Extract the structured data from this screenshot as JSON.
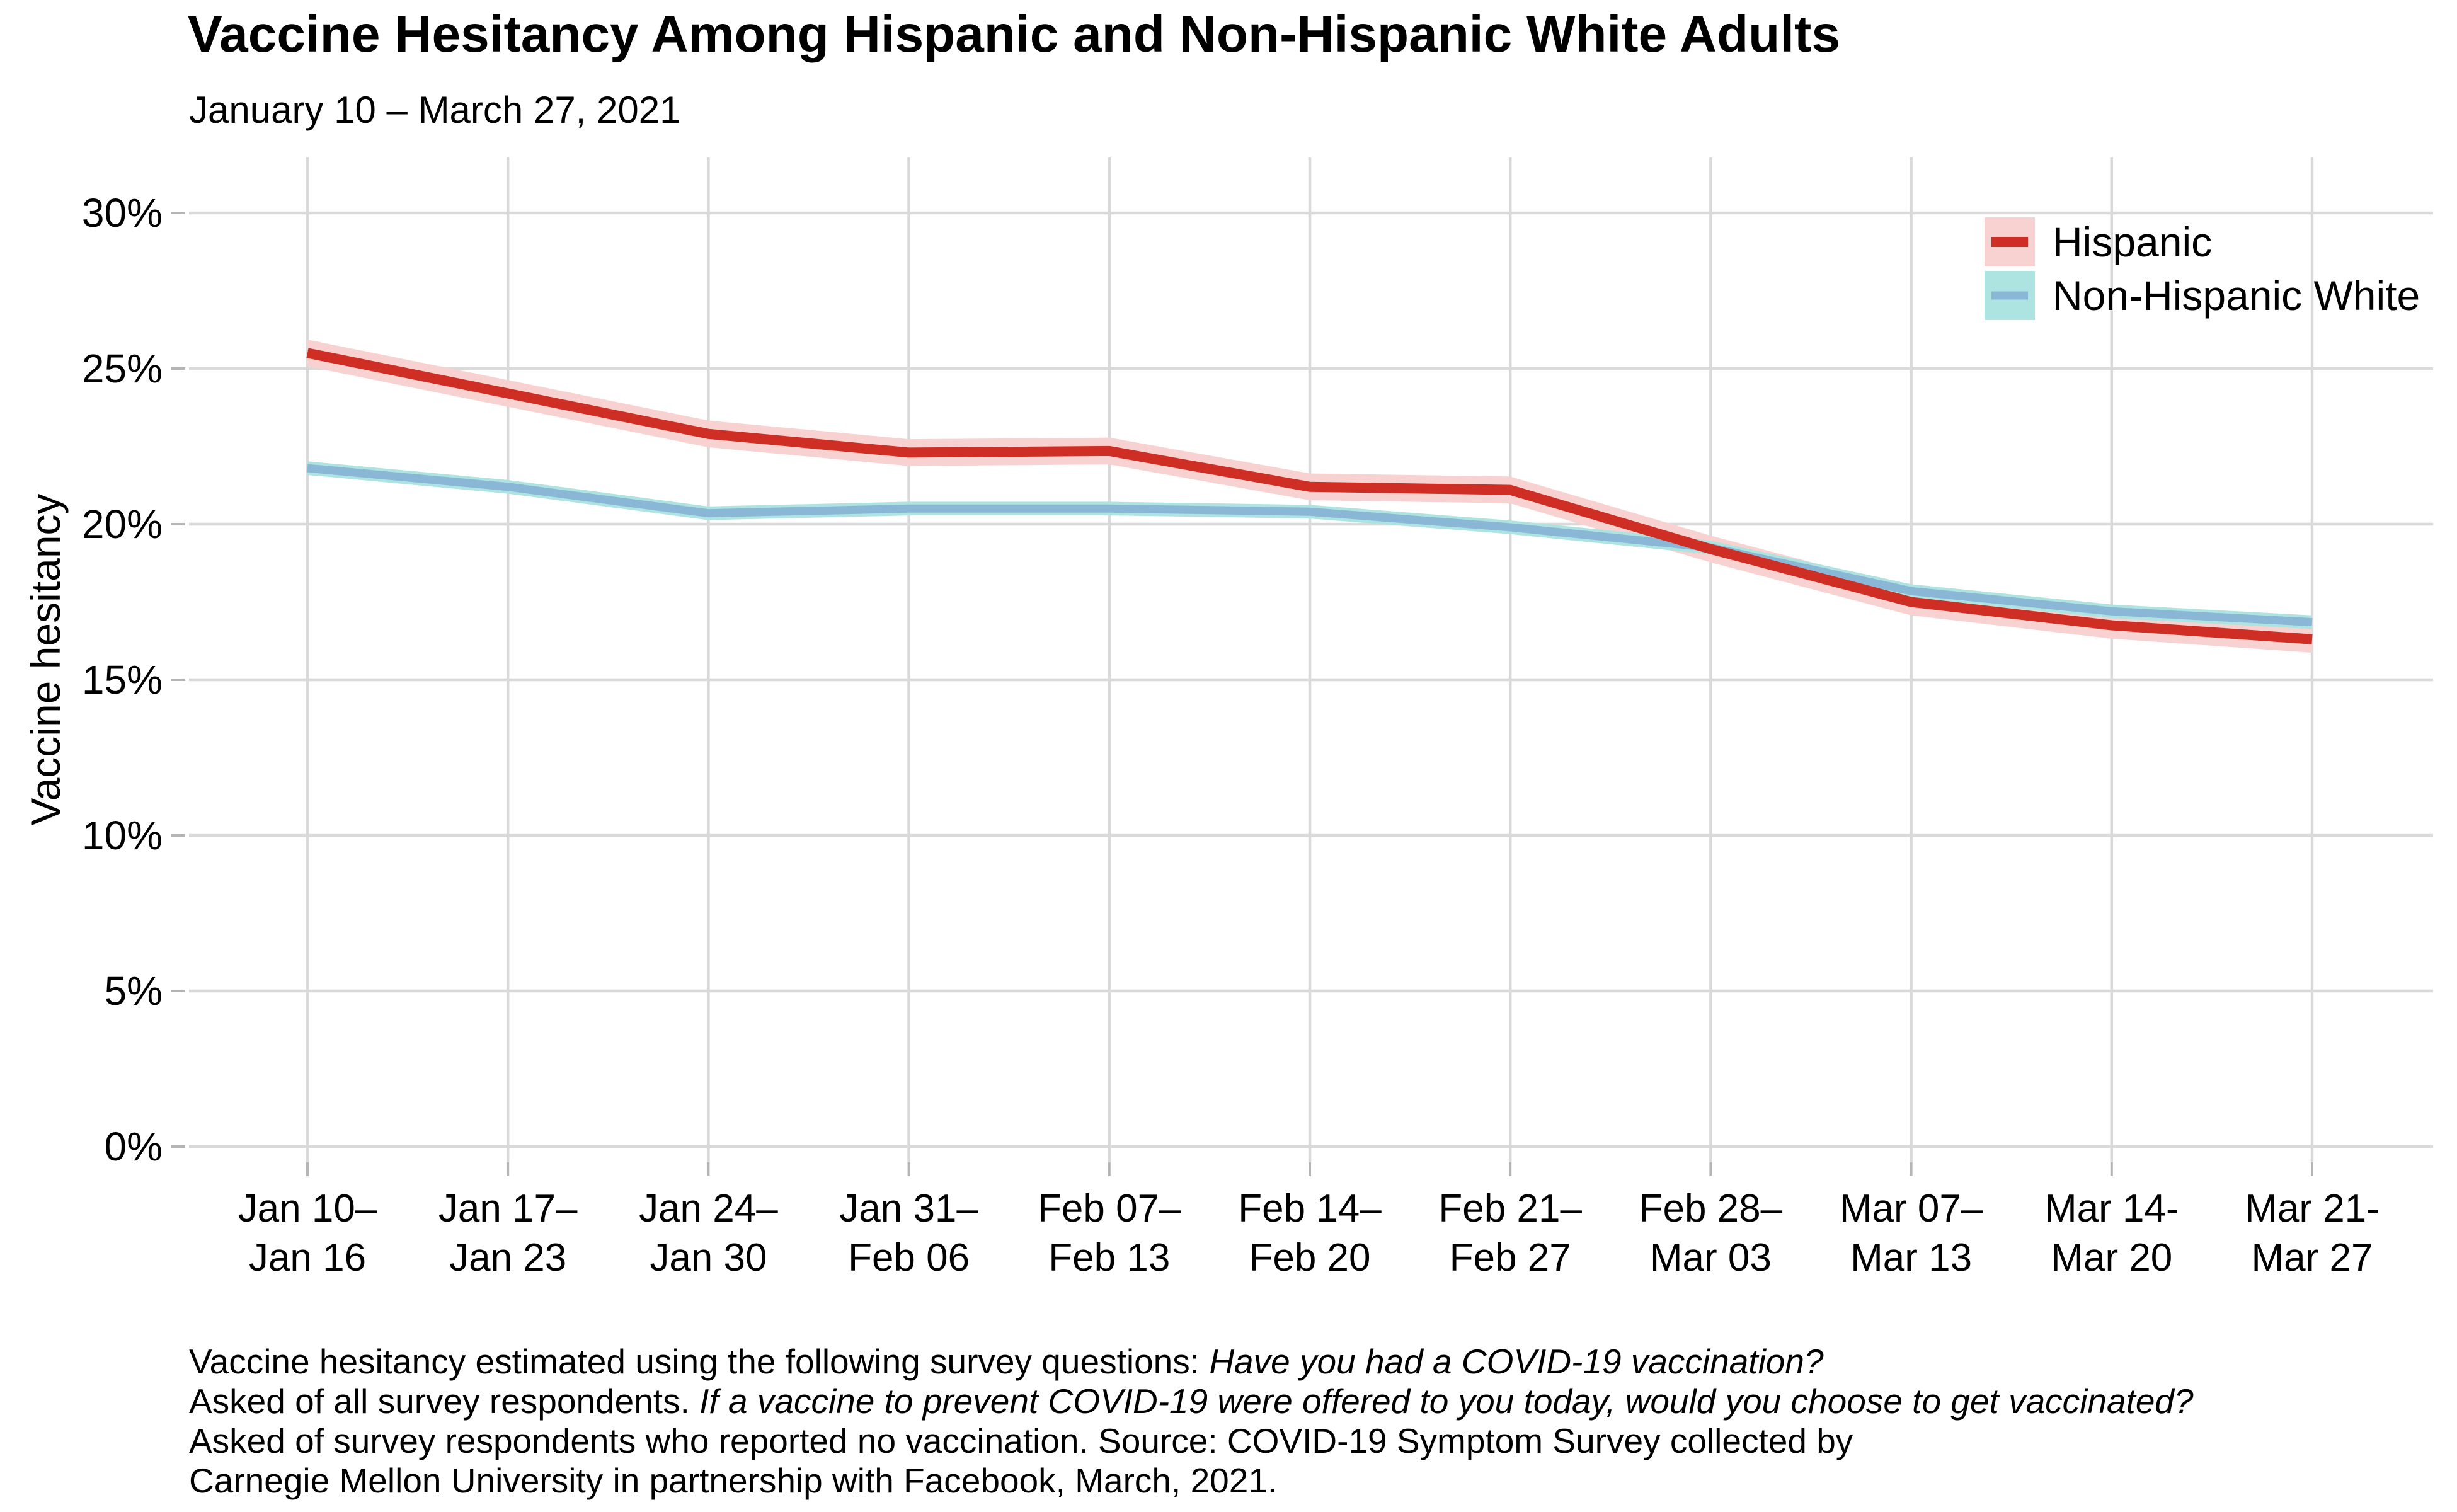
{
  "header": {
    "title": "Vaccine Hesitancy Among Hispanic and Non-Hispanic White Adults",
    "subtitle": "January 10 – March 27, 2021"
  },
  "chart_data": {
    "type": "line",
    "title": "Vaccine Hesitancy Among Hispanic and Non-Hispanic White Adults",
    "subtitle": "January 10 – March 27, 2021",
    "xlabel": "",
    "ylabel": "Vaccine hesitancy",
    "ylim": [
      0,
      30
    ],
    "grid": true,
    "legend_position": "top-right",
    "y_tick_labels": [
      "0%",
      "5%",
      "10%",
      "15%",
      "20%",
      "25%",
      "30%"
    ],
    "y_tick_values": [
      0,
      5,
      10,
      15,
      20,
      25,
      30
    ],
    "categories": [
      [
        "Jan 10–",
        "Jan 16"
      ],
      [
        "Jan 17–",
        "Jan 23"
      ],
      [
        "Jan 24–",
        "Jan 30"
      ],
      [
        "Jan 31–",
        "Feb 06"
      ],
      [
        "Feb 07–",
        "Feb 13"
      ],
      [
        "Feb 14–",
        "Feb 20"
      ],
      [
        "Feb 21–",
        "Feb 27"
      ],
      [
        "Feb 28–",
        "Mar 03"
      ],
      [
        "Mar 07–",
        "Mar 13"
      ],
      [
        "Mar 14-",
        "Mar 20"
      ],
      [
        "Mar 21-",
        "Mar 27"
      ]
    ],
    "series": [
      {
        "name": "Hispanic",
        "values": [
          25.5,
          24.2,
          22.9,
          22.3,
          22.35,
          21.2,
          21.1,
          19.2,
          17.5,
          16.75,
          16.3
        ],
        "ci_halfwidth_pct": 0.43,
        "line_color": "#ce2e23",
        "band_color": "#f8d2d0",
        "line_width": 16
      },
      {
        "name": "Non-Hispanic White",
        "values": [
          21.8,
          21.2,
          20.35,
          20.5,
          20.5,
          20.4,
          19.9,
          19.25,
          17.85,
          17.2,
          16.85
        ],
        "ci_halfwidth_pct": 0.22,
        "line_color": "#8ab7d5",
        "band_color": "#ade3e0",
        "line_width": 13
      }
    ],
    "colors": {
      "gridline": "#d9d9d9",
      "tick": "#b5b5b5",
      "background": "#ffffff",
      "text": "#000000"
    }
  },
  "footnote": {
    "lines": [
      [
        {
          "text": "Vaccine hesitancy estimated using the following survey questions: ",
          "italic": false
        },
        {
          "text": "Have you had a COVID-19 vaccination?",
          "italic": true
        }
      ],
      [
        {
          "text": "Asked of all survey respondents. ",
          "italic": false
        },
        {
          "text": "If a vaccine to prevent COVID-19 were offered to you today, would you choose to get vaccinated?",
          "italic": true
        }
      ],
      [
        {
          "text": "Asked of survey respondents who reported no vaccination. Source: COVID-19 Symptom Survey collected by",
          "italic": false
        }
      ],
      [
        {
          "text": "Carnegie Mellon University in partnership with Facebook, March, 2021.",
          "italic": false
        }
      ]
    ]
  }
}
